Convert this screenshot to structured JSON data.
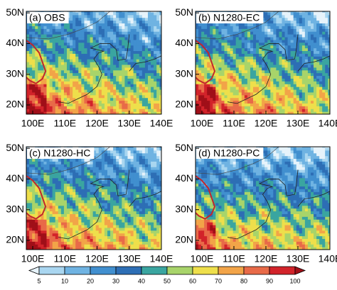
{
  "panels": [
    {
      "title": "(a) OBS"
    },
    {
      "title": "(b) N1280-EC"
    },
    {
      "title": "(c) N1280-HC"
    },
    {
      "title": "(d) N1280-PC"
    }
  ],
  "axes": {
    "xlim": [
      98,
      140
    ],
    "ylim": [
      17,
      50.5
    ],
    "xticks": [
      {
        "value": 100,
        "label": "100E"
      },
      {
        "value": 110,
        "label": "110E"
      },
      {
        "value": 120,
        "label": "120E"
      },
      {
        "value": 130,
        "label": "130E"
      },
      {
        "value": 140,
        "label": "140E"
      }
    ],
    "yticks": [
      {
        "value": 20,
        "label": "20N"
      },
      {
        "value": 30,
        "label": "30N"
      },
      {
        "value": 40,
        "label": "40N"
      },
      {
        "value": 50,
        "label": "50N"
      }
    ]
  },
  "colorbar": {
    "levels": [
      5,
      10,
      20,
      30,
      40,
      50,
      60,
      70,
      80,
      90,
      100
    ],
    "colors": [
      "#e6f3fb",
      "#a9d6f0",
      "#6fb3e2",
      "#418fcf",
      "#2d6eb5",
      "#3aa5a0",
      "#a8d46a",
      "#eedf4b",
      "#f2a448",
      "#e86a48",
      "#d2232a",
      "#a00f18"
    ]
  }
}
